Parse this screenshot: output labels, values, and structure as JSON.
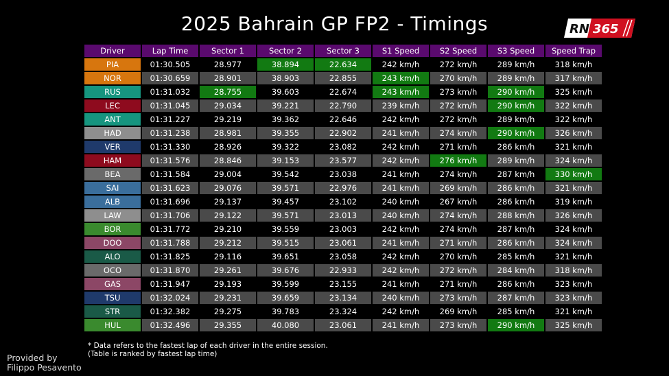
{
  "title": "2025 Bahrain GP FP2 - Timings",
  "logo": {
    "left": "RN",
    "right": "365"
  },
  "headers": [
    "Driver",
    "Lap Time",
    "Sector 1",
    "Sector 2",
    "Sector 3",
    "S1 Speed",
    "S2 Speed",
    "S3 Speed",
    "Speed Trap"
  ],
  "colors": {
    "header_purple": "#5a0a6e",
    "best_green": "#127a12",
    "row_grey": "#4a4a4a",
    "row_dark": "#000000",
    "logo_red": "#d01020"
  },
  "rows": [
    {
      "driver": "PIA",
      "team_color": "#d7760e",
      "lap": "01:30.505",
      "s1": "28.977",
      "s2": "38.894",
      "s3": "22.634",
      "sp1": "242 km/h",
      "sp2": "272 km/h",
      "sp3": "289 km/h",
      "trap": "318 km/h",
      "best": [
        "s2",
        "s3"
      ]
    },
    {
      "driver": "NOR",
      "team_color": "#d7760e",
      "lap": "01:30.659",
      "s1": "28.901",
      "s2": "38.903",
      "s3": "22.855",
      "sp1": "243 km/h",
      "sp2": "270 km/h",
      "sp3": "289 km/h",
      "trap": "317 km/h",
      "best": [
        "sp1"
      ]
    },
    {
      "driver": "RUS",
      "team_color": "#16957f",
      "lap": "01:31.032",
      "s1": "28.755",
      "s2": "39.603",
      "s3": "22.674",
      "sp1": "243 km/h",
      "sp2": "273 km/h",
      "sp3": "290 km/h",
      "trap": "325 km/h",
      "best": [
        "s1",
        "sp1",
        "sp3"
      ]
    },
    {
      "driver": "LEC",
      "team_color": "#8e0b1e",
      "lap": "01:31.045",
      "s1": "29.034",
      "s2": "39.221",
      "s3": "22.790",
      "sp1": "239 km/h",
      "sp2": "272 km/h",
      "sp3": "290 km/h",
      "trap": "322 km/h",
      "best": [
        "sp3"
      ]
    },
    {
      "driver": "ANT",
      "team_color": "#16957f",
      "lap": "01:31.227",
      "s1": "29.219",
      "s2": "39.362",
      "s3": "22.646",
      "sp1": "242 km/h",
      "sp2": "272 km/h",
      "sp3": "289 km/h",
      "trap": "322 km/h",
      "best": []
    },
    {
      "driver": "HAD",
      "team_color": "#8e8e8e",
      "lap": "01:31.238",
      "s1": "28.981",
      "s2": "39.355",
      "s3": "22.902",
      "sp1": "241 km/h",
      "sp2": "274 km/h",
      "sp3": "290 km/h",
      "trap": "326 km/h",
      "best": [
        "sp3"
      ]
    },
    {
      "driver": "VER",
      "team_color": "#1f3a6b",
      "lap": "01:31.330",
      "s1": "28.926",
      "s2": "39.322",
      "s3": "23.082",
      "sp1": "242 km/h",
      "sp2": "271 km/h",
      "sp3": "286 km/h",
      "trap": "321 km/h",
      "best": []
    },
    {
      "driver": "HAM",
      "team_color": "#8e0b1e",
      "lap": "01:31.576",
      "s1": "28.846",
      "s2": "39.153",
      "s3": "23.577",
      "sp1": "242 km/h",
      "sp2": "276 km/h",
      "sp3": "289 km/h",
      "trap": "324 km/h",
      "best": [
        "sp2"
      ]
    },
    {
      "driver": "BEA",
      "team_color": "#6a6a6a",
      "lap": "01:31.584",
      "s1": "29.004",
      "s2": "39.542",
      "s3": "23.038",
      "sp1": "241 km/h",
      "sp2": "274 km/h",
      "sp3": "287 km/h",
      "trap": "330 km/h",
      "best": [
        "trap"
      ]
    },
    {
      "driver": "SAI",
      "team_color": "#3a6e9c",
      "lap": "01:31.623",
      "s1": "29.076",
      "s2": "39.571",
      "s3": "22.976",
      "sp1": "241 km/h",
      "sp2": "269 km/h",
      "sp3": "286 km/h",
      "trap": "321 km/h",
      "best": []
    },
    {
      "driver": "ALB",
      "team_color": "#3a6e9c",
      "lap": "01:31.696",
      "s1": "29.137",
      "s2": "39.457",
      "s3": "23.102",
      "sp1": "240 km/h",
      "sp2": "267 km/h",
      "sp3": "286 km/h",
      "trap": "319 km/h",
      "best": []
    },
    {
      "driver": "LAW",
      "team_color": "#8e8e8e",
      "lap": "01:31.706",
      "s1": "29.122",
      "s2": "39.571",
      "s3": "23.013",
      "sp1": "240 km/h",
      "sp2": "274 km/h",
      "sp3": "288 km/h",
      "trap": "326 km/h",
      "best": []
    },
    {
      "driver": "BOR",
      "team_color": "#3a8a2e",
      "lap": "01:31.772",
      "s1": "29.210",
      "s2": "39.559",
      "s3": "23.003",
      "sp1": "242 km/h",
      "sp2": "274 km/h",
      "sp3": "287 km/h",
      "trap": "324 km/h",
      "best": []
    },
    {
      "driver": "DOO",
      "team_color": "#8c4766",
      "lap": "01:31.788",
      "s1": "29.212",
      "s2": "39.515",
      "s3": "23.061",
      "sp1": "241 km/h",
      "sp2": "271 km/h",
      "sp3": "286 km/h",
      "trap": "324 km/h",
      "best": []
    },
    {
      "driver": "ALO",
      "team_color": "#1a5a47",
      "lap": "01:31.825",
      "s1": "29.116",
      "s2": "39.651",
      "s3": "23.058",
      "sp1": "242 km/h",
      "sp2": "270 km/h",
      "sp3": "285 km/h",
      "trap": "321 km/h",
      "best": []
    },
    {
      "driver": "OCO",
      "team_color": "#6a6a6a",
      "lap": "01:31.870",
      "s1": "29.261",
      "s2": "39.676",
      "s3": "22.933",
      "sp1": "242 km/h",
      "sp2": "272 km/h",
      "sp3": "284 km/h",
      "trap": "318 km/h",
      "best": []
    },
    {
      "driver": "GAS",
      "team_color": "#8c4766",
      "lap": "01:31.947",
      "s1": "29.193",
      "s2": "39.599",
      "s3": "23.155",
      "sp1": "241 km/h",
      "sp2": "271 km/h",
      "sp3": "286 km/h",
      "trap": "323 km/h",
      "best": []
    },
    {
      "driver": "TSU",
      "team_color": "#1f3a6b",
      "lap": "01:32.024",
      "s1": "29.231",
      "s2": "39.659",
      "s3": "23.134",
      "sp1": "240 km/h",
      "sp2": "273 km/h",
      "sp3": "287 km/h",
      "trap": "323 km/h",
      "best": []
    },
    {
      "driver": "STR",
      "team_color": "#1a5a47",
      "lap": "01:32.382",
      "s1": "29.275",
      "s2": "39.783",
      "s3": "23.324",
      "sp1": "242 km/h",
      "sp2": "269 km/h",
      "sp3": "285 km/h",
      "trap": "321 km/h",
      "best": []
    },
    {
      "driver": "HUL",
      "team_color": "#3a8a2e",
      "lap": "01:32.496",
      "s1": "29.355",
      "s2": "40.080",
      "s3": "23.061",
      "sp1": "241 km/h",
      "sp2": "273 km/h",
      "sp3": "290 km/h",
      "trap": "325 km/h",
      "best": [
        "sp3"
      ]
    }
  ],
  "footnote": [
    "* Data refers to the fastest lap of each driver in the entire session.",
    "(Table is ranked by fastest lap time)"
  ],
  "credit": [
    "Provided by",
    "Filippo Pesavento"
  ]
}
